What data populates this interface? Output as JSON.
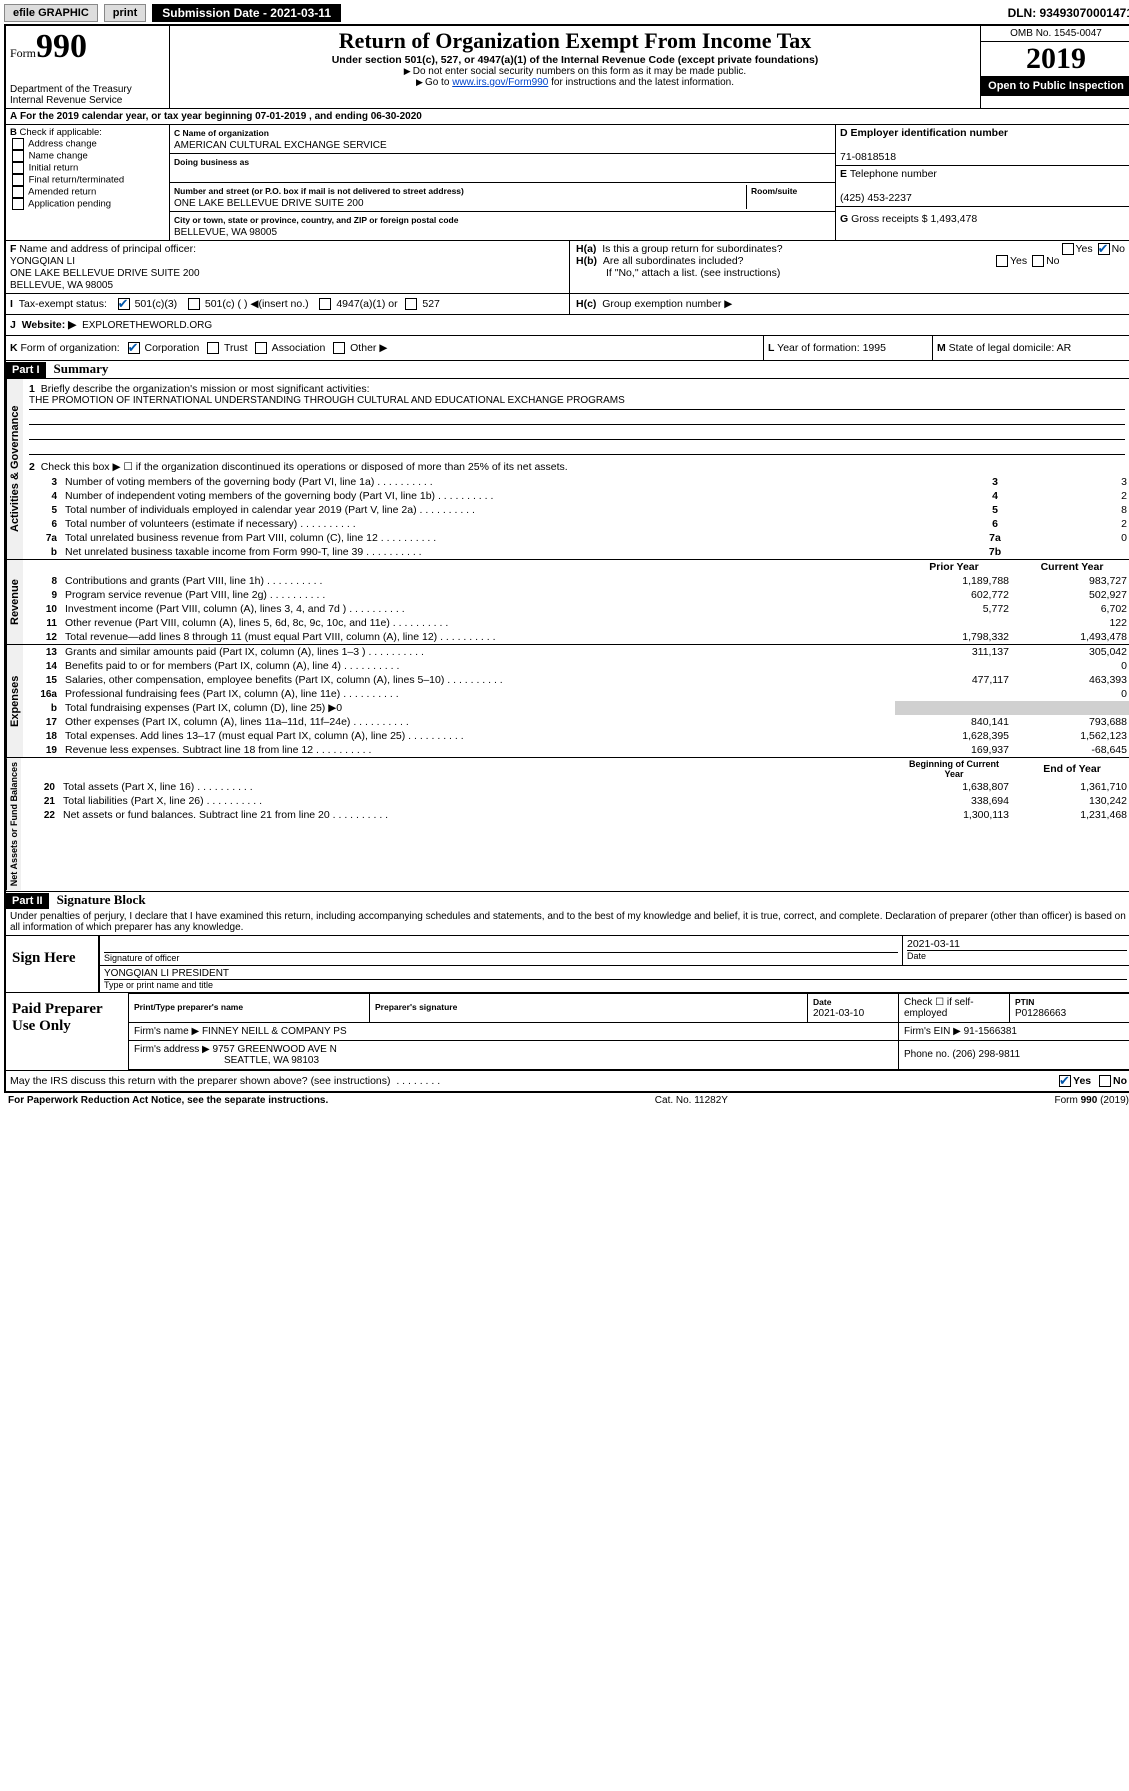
{
  "toolbar": {
    "efile": "efile GRAPHIC",
    "print": "print",
    "sub_label": "Submission Date - 2021-03-11",
    "dln": "DLN: 93493070001471"
  },
  "header": {
    "form_label": "Form",
    "form_num": "990",
    "dept": "Department of the Treasury\nInternal Revenue Service",
    "title": "Return of Organization Exempt From Income Tax",
    "subtitle": "Under section 501(c), 527, or 4947(a)(1) of the Internal Revenue Code (except private foundations)",
    "note1": "Do not enter social security numbers on this form as it may be made public.",
    "note2_pre": "Go to ",
    "note2_link": "www.irs.gov/Form990",
    "note2_post": " for instructions and the latest information.",
    "omb": "OMB No. 1545-0047",
    "year": "2019",
    "open": "Open to Public Inspection"
  },
  "lineA": {
    "text": "For the 2019 calendar year, or tax year beginning 07-01-2019     , and ending 06-30-2020"
  },
  "boxB": {
    "label": "Check if applicable:",
    "items": [
      "Address change",
      "Name change",
      "Initial return",
      "Final return/terminated",
      "Amended return",
      "Application pending"
    ]
  },
  "boxC": {
    "name_label": "Name of organization",
    "name": "AMERICAN CULTURAL EXCHANGE SERVICE",
    "dba_label": "Doing business as",
    "addr_label": "Number and street (or P.O. box if mail is not delivered to street address)",
    "room_label": "Room/suite",
    "addr": "ONE LAKE BELLEVUE DRIVE SUITE 200",
    "city_label": "City or town, state or province, country, and ZIP or foreign postal code",
    "city": "BELLEVUE, WA  98005"
  },
  "boxD": {
    "label": "Employer identification number",
    "val": "71-0818518"
  },
  "boxE": {
    "label": "Telephone number",
    "val": "(425) 453-2237"
  },
  "boxG": {
    "label": "Gross receipts $",
    "val": "1,493,478"
  },
  "boxF": {
    "label": "Name and address of principal officer:",
    "name": "YONGQIAN LI",
    "addr1": "ONE LAKE BELLEVUE DRIVE SUITE 200",
    "addr2": "BELLEVUE, WA  98005"
  },
  "boxH": {
    "a": "Is this a group return for subordinates?",
    "b": "Are all subordinates included?",
    "b_note": "If \"No,\" attach a list. (see instructions)",
    "c": "Group exemption number ▶"
  },
  "boxI": {
    "label": "Tax-exempt status:",
    "c3": "501(c)(3)",
    "c": "501(c) (   ) ◀(insert no.)",
    "a1": "4947(a)(1) or",
    "s527": "527"
  },
  "boxJ": {
    "label": "Website: ▶",
    "val": "EXPLORETHEWORLD.ORG"
  },
  "boxK": {
    "label": "Form of organization:",
    "opts": [
      "Corporation",
      "Trust",
      "Association",
      "Other ▶"
    ]
  },
  "boxL": {
    "label": "Year of formation:",
    "val": "1995"
  },
  "boxM": {
    "label": "State of legal domicile:",
    "val": "AR"
  },
  "part1": {
    "num": "Part I",
    "title": "Summary"
  },
  "summary": {
    "l1_label": "Briefly describe the organization's mission or most significant activities:",
    "l1_val": "THE PROMOTION OF INTERNATIONAL UNDERSTANDING THROUGH CULTURAL AND EDUCATIONAL EXCHANGE PROGRAMS",
    "l2": "Check this box ▶ ☐ if the organization discontinued its operations or disposed of more than 25% of its net assets.",
    "rows_gov": [
      {
        "n": "3",
        "t": "Number of voting members of the governing body (Part VI, line 1a)",
        "b": "3",
        "v": "3"
      },
      {
        "n": "4",
        "t": "Number of independent voting members of the governing body (Part VI, line 1b)",
        "b": "4",
        "v": "2"
      },
      {
        "n": "5",
        "t": "Total number of individuals employed in calendar year 2019 (Part V, line 2a)",
        "b": "5",
        "v": "8"
      },
      {
        "n": "6",
        "t": "Total number of volunteers (estimate if necessary)",
        "b": "6",
        "v": "2"
      },
      {
        "n": "7a",
        "t": "Total unrelated business revenue from Part VIII, column (C), line 12",
        "b": "7a",
        "v": "0"
      },
      {
        "n": "b",
        "t": "Net unrelated business taxable income from Form 990-T, line 39",
        "b": "7b",
        "v": ""
      }
    ],
    "hdr_prior": "Prior Year",
    "hdr_curr": "Current Year",
    "rows_rev": [
      {
        "n": "8",
        "t": "Contributions and grants (Part VIII, line 1h)",
        "p": "1,189,788",
        "c": "983,727"
      },
      {
        "n": "9",
        "t": "Program service revenue (Part VIII, line 2g)",
        "p": "602,772",
        "c": "502,927"
      },
      {
        "n": "10",
        "t": "Investment income (Part VIII, column (A), lines 3, 4, and 7d )",
        "p": "5,772",
        "c": "6,702"
      },
      {
        "n": "11",
        "t": "Other revenue (Part VIII, column (A), lines 5, 6d, 8c, 9c, 10c, and 11e)",
        "p": "",
        "c": "122"
      },
      {
        "n": "12",
        "t": "Total revenue—add lines 8 through 11 (must equal Part VIII, column (A), line 12)",
        "p": "1,798,332",
        "c": "1,493,478"
      }
    ],
    "rows_exp": [
      {
        "n": "13",
        "t": "Grants and similar amounts paid (Part IX, column (A), lines 1–3 )",
        "p": "311,137",
        "c": "305,042"
      },
      {
        "n": "14",
        "t": "Benefits paid to or for members (Part IX, column (A), line 4)",
        "p": "",
        "c": "0"
      },
      {
        "n": "15",
        "t": "Salaries, other compensation, employee benefits (Part IX, column (A), lines 5–10)",
        "p": "477,117",
        "c": "463,393"
      },
      {
        "n": "16a",
        "t": "Professional fundraising fees (Part IX, column (A), line 11e)",
        "p": "",
        "c": "0"
      },
      {
        "n": "b",
        "t": "Total fundraising expenses (Part IX, column (D), line 25) ▶0",
        "p": "",
        "c": "",
        "shade": true
      },
      {
        "n": "17",
        "t": "Other expenses (Part IX, column (A), lines 11a–11d, 11f–24e)",
        "p": "840,141",
        "c": "793,688"
      },
      {
        "n": "18",
        "t": "Total expenses. Add lines 13–17 (must equal Part IX, column (A), line 25)",
        "p": "1,628,395",
        "c": "1,562,123"
      },
      {
        "n": "19",
        "t": "Revenue less expenses. Subtract line 18 from line 12",
        "p": "169,937",
        "c": "-68,645"
      }
    ],
    "hdr_beg": "Beginning of Current Year",
    "hdr_end": "End of Year",
    "rows_net": [
      {
        "n": "20",
        "t": "Total assets (Part X, line 16)",
        "p": "1,638,807",
        "c": "1,361,710"
      },
      {
        "n": "21",
        "t": "Total liabilities (Part X, line 26)",
        "p": "338,694",
        "c": "130,242"
      },
      {
        "n": "22",
        "t": "Net assets or fund balances. Subtract line 21 from line 20",
        "p": "1,300,113",
        "c": "1,231,468"
      }
    ]
  },
  "vtabs": {
    "gov": "Activities & Governance",
    "rev": "Revenue",
    "exp": "Expenses",
    "net": "Net Assets or Fund Balances"
  },
  "part2": {
    "num": "Part II",
    "title": "Signature Block"
  },
  "perjury": "Under penalties of perjury, I declare that I have examined this return, including accompanying schedules and statements, and to the best of my knowledge and belief, it is true, correct, and complete. Declaration of preparer (other than officer) is based on all information of which preparer has any knowledge.",
  "sign": {
    "here": "Sign Here",
    "sig_label": "Signature of officer",
    "date": "2021-03-11",
    "date_label": "Date",
    "name": "YONGQIAN LI PRESIDENT",
    "name_label": "Type or print name and title"
  },
  "paid": {
    "title": "Paid Preparer Use Only",
    "h1": "Print/Type preparer's name",
    "h2": "Preparer's signature",
    "h3": "Date",
    "h3v": "2021-03-10",
    "h4": "Check ☐ if self-employed",
    "h5": "PTIN",
    "h5v": "P01286663",
    "firm_name_l": "Firm's name      ▶",
    "firm_name": "FINNEY NEILL & COMPANY PS",
    "firm_ein_l": "Firm's EIN ▶",
    "firm_ein": "91-1566381",
    "firm_addr_l": "Firm's address ▶",
    "firm_addr": "9757 GREENWOOD AVE N",
    "firm_city": "SEATTLE, WA  98103",
    "phone_l": "Phone no.",
    "phone": "(206) 298-9811"
  },
  "discuss": "May the IRS discuss this return with the preparer shown above? (see instructions)",
  "yes": "Yes",
  "no": "No",
  "footer": {
    "l": "For Paperwork Reduction Act Notice, see the separate instructions.",
    "c": "Cat. No. 11282Y",
    "r": "Form 990 (2019)"
  }
}
